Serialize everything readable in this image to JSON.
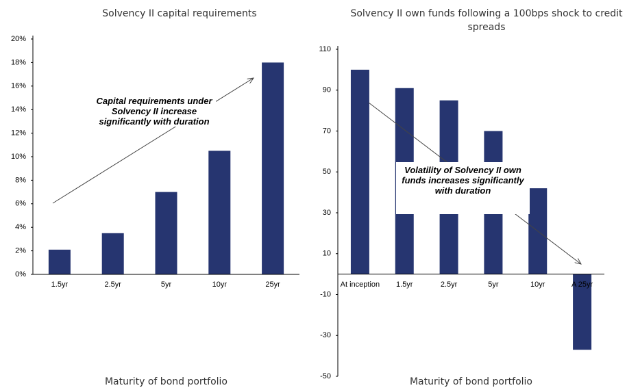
{
  "chart_data": [
    {
      "type": "bar",
      "title": "Solvency II capital requirements",
      "categories": [
        "1.5yr",
        "2.5yr",
        "5yr",
        "10yr",
        "25yr"
      ],
      "values": [
        2.1,
        3.5,
        7.0,
        10.5,
        18.0
      ],
      "color": "#263570",
      "ylim": [
        0,
        20
      ],
      "yticks": [
        {
          "value": 0,
          "label": "0%"
        },
        {
          "value": 2,
          "label": "2%"
        },
        {
          "value": 4,
          "label": "4%"
        },
        {
          "value": 6,
          "label": "6%"
        },
        {
          "value": 8,
          "label": "8%"
        },
        {
          "value": 10,
          "label": "10%"
        },
        {
          "value": 12,
          "label": "12%"
        },
        {
          "value": 14,
          "label": "14%"
        },
        {
          "value": 16,
          "label": "16%"
        },
        {
          "value": 18,
          "label": "18%"
        },
        {
          "value": 20,
          "label": "20%"
        }
      ],
      "xlabel": "Maturity of bond portfolio",
      "annotation": "Capital requirements under Solvency II increase significantly with duration"
    },
    {
      "type": "bar",
      "title": "Solvency II own funds following a 100bps shock to credit spreads",
      "categories": [
        "At inception",
        "1.5yr",
        "2.5yr",
        "5yr",
        "10yr",
        "A 25yr"
      ],
      "values": [
        100,
        91,
        85,
        70,
        42,
        -37
      ],
      "color": "#263570",
      "ylim": [
        -50,
        110
      ],
      "yticks": [
        -50,
        -30,
        -10,
        10,
        30,
        50,
        70,
        90,
        110
      ],
      "xlabel": "Maturity of bond portfolio",
      "annotation": "Volatility of Solvency II own funds increases significantly with duration"
    }
  ]
}
